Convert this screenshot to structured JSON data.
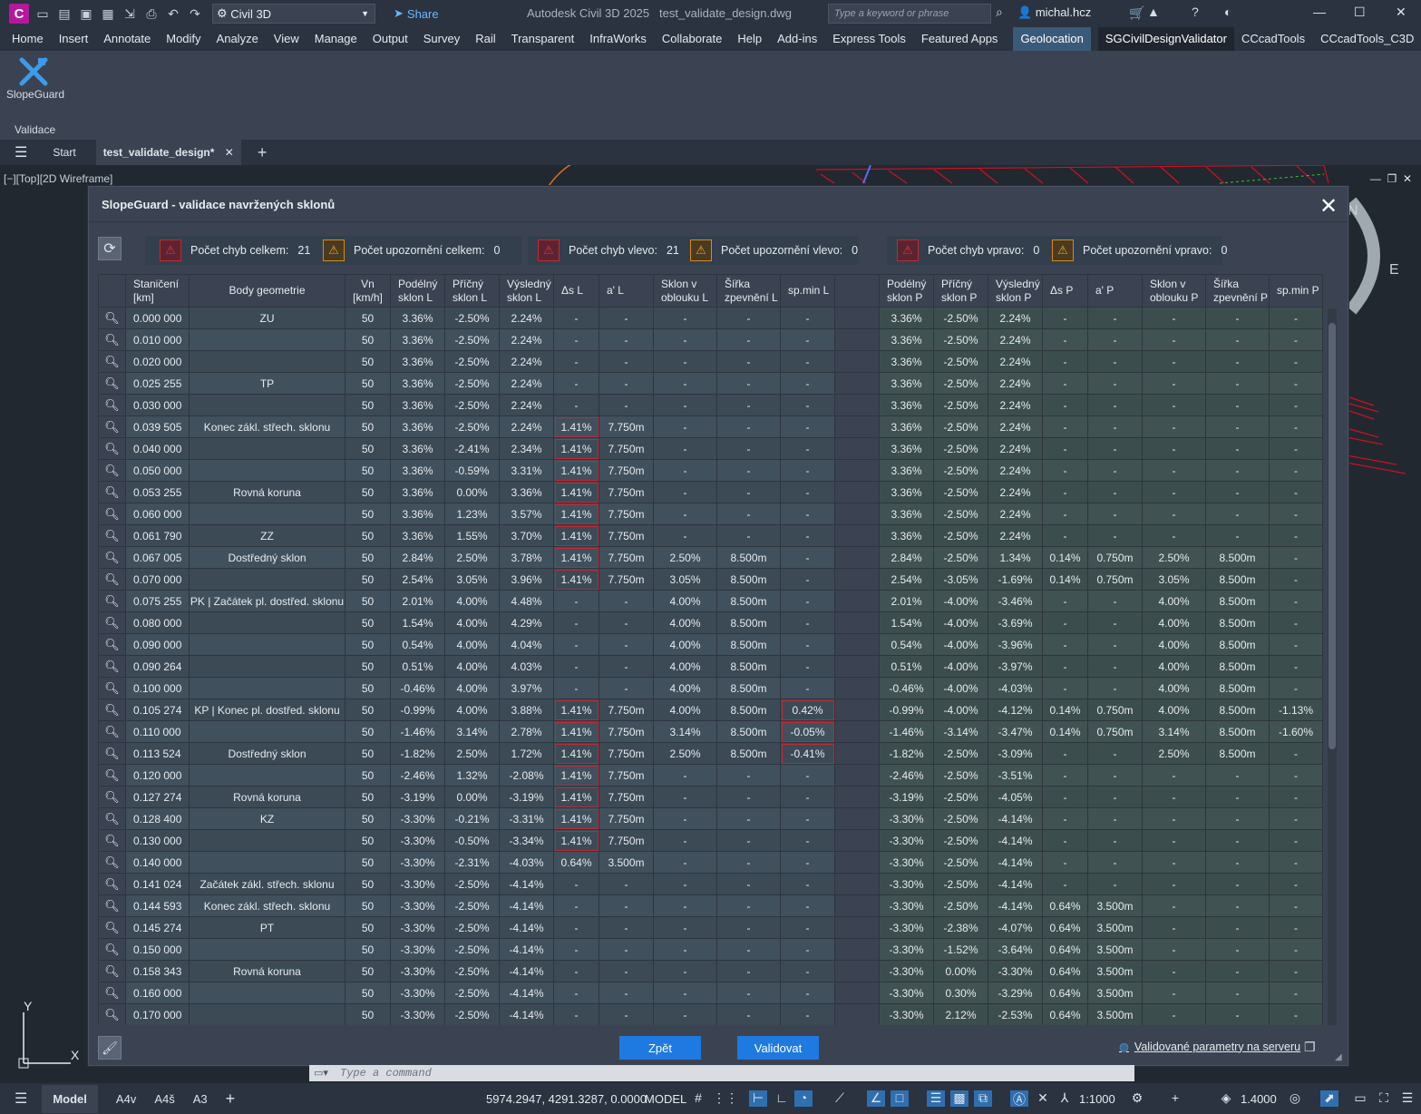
{
  "titlebar": {
    "workspace": "Civil 3D",
    "share": "Share",
    "app_title": "Autodesk Civil 3D 2025",
    "file_name": "test_validate_design.dwg",
    "search_placeholder": "Type a keyword or phrase",
    "user": "michal.hcz"
  },
  "menu": [
    "Home",
    "Insert",
    "Annotate",
    "Modify",
    "Analyze",
    "View",
    "Manage",
    "Output",
    "Survey",
    "Rail",
    "Transparent",
    "InfraWorks",
    "Collaborate",
    "Help",
    "Add-ins",
    "Express Tools",
    "Featured Apps",
    "Geolocation",
    "SGCivilDesignValidator",
    "CCcadTools",
    "CCcadTools_C3D"
  ],
  "ribbon": {
    "button_label": "SlopeGuard",
    "panel_label": "Validace"
  },
  "doctabs": {
    "start": "Start",
    "current": "test_validate_design*"
  },
  "viewport_label": "[−][Top][2D Wireframe]",
  "dialog": {
    "title": "SlopeGuard - validace navržených sklonů",
    "summary": [
      {
        "label": "Počet chyb celkem:",
        "value": "21",
        "kind": "error"
      },
      {
        "label": "Počet upozornění celkem:",
        "value": "0",
        "kind": "warning"
      },
      {
        "label": "Počet chyb vlevo:",
        "value": "21",
        "kind": "error"
      },
      {
        "label": "Počet upozornění vlevo:",
        "value": "0",
        "kind": "warning"
      },
      {
        "label": "Počet chyb vpravo:",
        "value": "0",
        "kind": "error"
      },
      {
        "label": "Počet upozornění vpravo:",
        "value": "0",
        "kind": "warning"
      }
    ],
    "columns": [
      "Staničení\n[km]",
      "Body geometrie",
      "Vn\n[km/h]",
      "Podélný\nsklon L",
      "Příčný\nsklon L",
      "Výsledný\nsklon L",
      "Δs L",
      "a' L",
      "Sklon v\noblouku L",
      "Šířka\nzpevnění L",
      "sp.min L",
      "",
      "Podélný\nsklon P",
      "Příčný\nsklon P",
      "Výsledný\nsklon P",
      "Δs P",
      "a' P",
      "Sklon v\noblouku P",
      "Šířka\nzpevnění P",
      "sp.min P"
    ],
    "rows": [
      {
        "c": [
          "0.000 000",
          "ZU",
          "50",
          "3.36%",
          "-2.50%",
          "2.24%",
          "-",
          "-",
          "-",
          "-",
          "-",
          "",
          "3.36%",
          "-2.50%",
          "2.24%",
          "-",
          "-",
          "-",
          "-",
          "-"
        ],
        "err": []
      },
      {
        "c": [
          "0.010 000",
          "",
          "50",
          "3.36%",
          "-2.50%",
          "2.24%",
          "-",
          "-",
          "-",
          "-",
          "-",
          "",
          "3.36%",
          "-2.50%",
          "2.24%",
          "-",
          "-",
          "-",
          "-",
          "-"
        ],
        "err": []
      },
      {
        "c": [
          "0.020 000",
          "",
          "50",
          "3.36%",
          "-2.50%",
          "2.24%",
          "-",
          "-",
          "-",
          "-",
          "-",
          "",
          "3.36%",
          "-2.50%",
          "2.24%",
          "-",
          "-",
          "-",
          "-",
          "-"
        ],
        "err": []
      },
      {
        "c": [
          "0.025 255",
          "TP",
          "50",
          "3.36%",
          "-2.50%",
          "2.24%",
          "-",
          "-",
          "-",
          "-",
          "-",
          "",
          "3.36%",
          "-2.50%",
          "2.24%",
          "-",
          "-",
          "-",
          "-",
          "-"
        ],
        "err": []
      },
      {
        "c": [
          "0.030 000",
          "",
          "50",
          "3.36%",
          "-2.50%",
          "2.24%",
          "-",
          "-",
          "-",
          "-",
          "-",
          "",
          "3.36%",
          "-2.50%",
          "2.24%",
          "-",
          "-",
          "-",
          "-",
          "-"
        ],
        "err": []
      },
      {
        "c": [
          "0.039 505",
          "Konec zákl. střech. sklonu",
          "50",
          "3.36%",
          "-2.50%",
          "2.24%",
          "1.41%",
          "7.750m",
          "-",
          "-",
          "-",
          "",
          "3.36%",
          "-2.50%",
          "2.24%",
          "-",
          "-",
          "-",
          "-",
          "-"
        ],
        "err": [
          6
        ]
      },
      {
        "c": [
          "0.040 000",
          "",
          "50",
          "3.36%",
          "-2.41%",
          "2.34%",
          "1.41%",
          "7.750m",
          "-",
          "-",
          "-",
          "",
          "3.36%",
          "-2.50%",
          "2.24%",
          "-",
          "-",
          "-",
          "-",
          "-"
        ],
        "err": [
          6
        ]
      },
      {
        "c": [
          "0.050 000",
          "",
          "50",
          "3.36%",
          "-0.59%",
          "3.31%",
          "1.41%",
          "7.750m",
          "-",
          "-",
          "-",
          "",
          "3.36%",
          "-2.50%",
          "2.24%",
          "-",
          "-",
          "-",
          "-",
          "-"
        ],
        "err": [
          6
        ]
      },
      {
        "c": [
          "0.053 255",
          "Rovná koruna",
          "50",
          "3.36%",
          "0.00%",
          "3.36%",
          "1.41%",
          "7.750m",
          "-",
          "-",
          "-",
          "",
          "3.36%",
          "-2.50%",
          "2.24%",
          "-",
          "-",
          "-",
          "-",
          "-"
        ],
        "err": [
          6
        ]
      },
      {
        "c": [
          "0.060 000",
          "",
          "50",
          "3.36%",
          "1.23%",
          "3.57%",
          "1.41%",
          "7.750m",
          "-",
          "-",
          "-",
          "",
          "3.36%",
          "-2.50%",
          "2.24%",
          "-",
          "-",
          "-",
          "-",
          "-"
        ],
        "err": [
          6
        ]
      },
      {
        "c": [
          "0.061 790",
          "ZZ",
          "50",
          "3.36%",
          "1.55%",
          "3.70%",
          "1.41%",
          "7.750m",
          "-",
          "-",
          "-",
          "",
          "3.36%",
          "-2.50%",
          "2.24%",
          "-",
          "-",
          "-",
          "-",
          "-"
        ],
        "err": [
          6
        ]
      },
      {
        "c": [
          "0.067 005",
          "Dostředný sklon",
          "50",
          "2.84%",
          "2.50%",
          "3.78%",
          "1.41%",
          "7.750m",
          "2.50%",
          "8.500m",
          "-",
          "",
          "2.84%",
          "-2.50%",
          "1.34%",
          "0.14%",
          "0.750m",
          "2.50%",
          "8.500m",
          "-"
        ],
        "err": [
          6
        ]
      },
      {
        "c": [
          "0.070 000",
          "",
          "50",
          "2.54%",
          "3.05%",
          "3.96%",
          "1.41%",
          "7.750m",
          "3.05%",
          "8.500m",
          "-",
          "",
          "2.54%",
          "-3.05%",
          "-1.69%",
          "0.14%",
          "0.750m",
          "3.05%",
          "8.500m",
          "-"
        ],
        "err": [
          6
        ]
      },
      {
        "c": [
          "0.075 255",
          "PK | Začátek pl. dostřed. sklonu",
          "50",
          "2.01%",
          "4.00%",
          "4.48%",
          "-",
          "-",
          "4.00%",
          "8.500m",
          "-",
          "",
          "2.01%",
          "-4.00%",
          "-3.46%",
          "-",
          "-",
          "4.00%",
          "8.500m",
          "-"
        ],
        "err": []
      },
      {
        "c": [
          "0.080 000",
          "",
          "50",
          "1.54%",
          "4.00%",
          "4.29%",
          "-",
          "-",
          "4.00%",
          "8.500m",
          "-",
          "",
          "1.54%",
          "-4.00%",
          "-3.69%",
          "-",
          "-",
          "4.00%",
          "8.500m",
          "-"
        ],
        "err": []
      },
      {
        "c": [
          "0.090 000",
          "",
          "50",
          "0.54%",
          "4.00%",
          "4.04%",
          "-",
          "-",
          "4.00%",
          "8.500m",
          "-",
          "",
          "0.54%",
          "-4.00%",
          "-3.96%",
          "-",
          "-",
          "4.00%",
          "8.500m",
          "-"
        ],
        "err": []
      },
      {
        "c": [
          "0.090 264",
          "",
          "50",
          "0.51%",
          "4.00%",
          "4.03%",
          "-",
          "-",
          "4.00%",
          "8.500m",
          "-",
          "",
          "0.51%",
          "-4.00%",
          "-3.97%",
          "-",
          "-",
          "4.00%",
          "8.500m",
          "-"
        ],
        "err": []
      },
      {
        "c": [
          "0.100 000",
          "",
          "50",
          "-0.46%",
          "4.00%",
          "3.97%",
          "-",
          "-",
          "4.00%",
          "8.500m",
          "-",
          "",
          "-0.46%",
          "-4.00%",
          "-4.03%",
          "-",
          "-",
          "4.00%",
          "8.500m",
          "-"
        ],
        "err": []
      },
      {
        "c": [
          "0.105 274",
          "KP | Konec pl. dostřed. sklonu",
          "50",
          "-0.99%",
          "4.00%",
          "3.88%",
          "1.41%",
          "7.750m",
          "4.00%",
          "8.500m",
          "0.42%",
          "",
          "-0.99%",
          "-4.00%",
          "-4.12%",
          "0.14%",
          "0.750m",
          "4.00%",
          "8.500m",
          "-1.13%"
        ],
        "err": [
          6,
          10
        ]
      },
      {
        "c": [
          "0.110 000",
          "",
          "50",
          "-1.46%",
          "3.14%",
          "2.78%",
          "1.41%",
          "7.750m",
          "3.14%",
          "8.500m",
          "-0.05%",
          "",
          "-1.46%",
          "-3.14%",
          "-3.47%",
          "0.14%",
          "0.750m",
          "3.14%",
          "8.500m",
          "-1.60%"
        ],
        "err": [
          6,
          10
        ]
      },
      {
        "c": [
          "0.113 524",
          "Dostředný sklon",
          "50",
          "-1.82%",
          "2.50%",
          "1.72%",
          "1.41%",
          "7.750m",
          "2.50%",
          "8.500m",
          "-0.41%",
          "",
          "-1.82%",
          "-2.50%",
          "-3.09%",
          "-",
          "-",
          "2.50%",
          "8.500m",
          "-"
        ],
        "err": [
          6,
          10
        ]
      },
      {
        "c": [
          "0.120 000",
          "",
          "50",
          "-2.46%",
          "1.32%",
          "-2.08%",
          "1.41%",
          "7.750m",
          "-",
          "-",
          "-",
          "",
          "-2.46%",
          "-2.50%",
          "-3.51%",
          "-",
          "-",
          "-",
          "-",
          "-"
        ],
        "err": [
          6
        ]
      },
      {
        "c": [
          "0.127 274",
          "Rovná koruna",
          "50",
          "-3.19%",
          "0.00%",
          "-3.19%",
          "1.41%",
          "7.750m",
          "-",
          "-",
          "-",
          "",
          "-3.19%",
          "-2.50%",
          "-4.05%",
          "-",
          "-",
          "-",
          "-",
          "-"
        ],
        "err": [
          6
        ]
      },
      {
        "c": [
          "0.128 400",
          "KZ",
          "50",
          "-3.30%",
          "-0.21%",
          "-3.31%",
          "1.41%",
          "7.750m",
          "-",
          "-",
          "-",
          "",
          "-3.30%",
          "-2.50%",
          "-4.14%",
          "-",
          "-",
          "-",
          "-",
          "-"
        ],
        "err": [
          6
        ]
      },
      {
        "c": [
          "0.130 000",
          "",
          "50",
          "-3.30%",
          "-0.50%",
          "-3.34%",
          "1.41%",
          "7.750m",
          "-",
          "-",
          "-",
          "",
          "-3.30%",
          "-2.50%",
          "-4.14%",
          "-",
          "-",
          "-",
          "-",
          "-"
        ],
        "err": [
          6
        ]
      },
      {
        "c": [
          "0.140 000",
          "",
          "50",
          "-3.30%",
          "-2.31%",
          "-4.03%",
          "0.64%",
          "3.500m",
          "-",
          "-",
          "-",
          "",
          "-3.30%",
          "-2.50%",
          "-4.14%",
          "-",
          "-",
          "-",
          "-",
          "-"
        ],
        "err": []
      },
      {
        "c": [
          "0.141 024",
          "Začátek zákl. střech. sklonu",
          "50",
          "-3.30%",
          "-2.50%",
          "-4.14%",
          "-",
          "-",
          "-",
          "-",
          "-",
          "",
          "-3.30%",
          "-2.50%",
          "-4.14%",
          "-",
          "-",
          "-",
          "-",
          "-"
        ],
        "err": []
      },
      {
        "c": [
          "0.144 593",
          "Konec zákl. střech. sklonu",
          "50",
          "-3.30%",
          "-2.50%",
          "-4.14%",
          "-",
          "-",
          "-",
          "-",
          "-",
          "",
          "-3.30%",
          "-2.50%",
          "-4.14%",
          "0.64%",
          "3.500m",
          "-",
          "-",
          "-"
        ],
        "err": []
      },
      {
        "c": [
          "0.145 274",
          "PT",
          "50",
          "-3.30%",
          "-2.50%",
          "-4.14%",
          "-",
          "-",
          "-",
          "-",
          "-",
          "",
          "-3.30%",
          "-2.38%",
          "-4.07%",
          "0.64%",
          "3.500m",
          "-",
          "-",
          "-"
        ],
        "err": []
      },
      {
        "c": [
          "0.150 000",
          "",
          "50",
          "-3.30%",
          "-2.50%",
          "-4.14%",
          "-",
          "-",
          "-",
          "-",
          "-",
          "",
          "-3.30%",
          "-1.52%",
          "-3.64%",
          "0.64%",
          "3.500m",
          "-",
          "-",
          "-"
        ],
        "err": []
      },
      {
        "c": [
          "0.158 343",
          "Rovná koruna",
          "50",
          "-3.30%",
          "-2.50%",
          "-4.14%",
          "-",
          "-",
          "-",
          "-",
          "-",
          "",
          "-3.30%",
          "0.00%",
          "-3.30%",
          "0.64%",
          "3.500m",
          "-",
          "-",
          "-"
        ],
        "err": []
      },
      {
        "c": [
          "0.160 000",
          "",
          "50",
          "-3.30%",
          "-2.50%",
          "-4.14%",
          "-",
          "-",
          "-",
          "-",
          "-",
          "",
          "-3.30%",
          "0.30%",
          "-3.29%",
          "0.64%",
          "3.500m",
          "-",
          "-",
          "-"
        ],
        "err": []
      },
      {
        "c": [
          "0.170 000",
          "",
          "50",
          "-3.30%",
          "-2.50%",
          "-4.14%",
          "-",
          "-",
          "-",
          "-",
          "-",
          "",
          "-3.30%",
          "2.12%",
          "-2.53%",
          "0.64%",
          "3.500m",
          "-",
          "-",
          "-"
        ],
        "err": []
      }
    ],
    "back_button": "Zpět",
    "validate_button": "Validovat",
    "server_link": "Validované parametry na serveru"
  },
  "command_placeholder": "Type a command",
  "statusbar": {
    "layouts": [
      "Model",
      "A4v",
      "A4š",
      "A3"
    ],
    "coords": "5974.2947, 4291.3287, 0.0000",
    "space": "MODEL",
    "scale": "1:1000",
    "zoom": "1.4000"
  },
  "colors": {
    "error": "#c02a35",
    "warning": "#d68a1a",
    "accent": "#1e7ae0"
  }
}
